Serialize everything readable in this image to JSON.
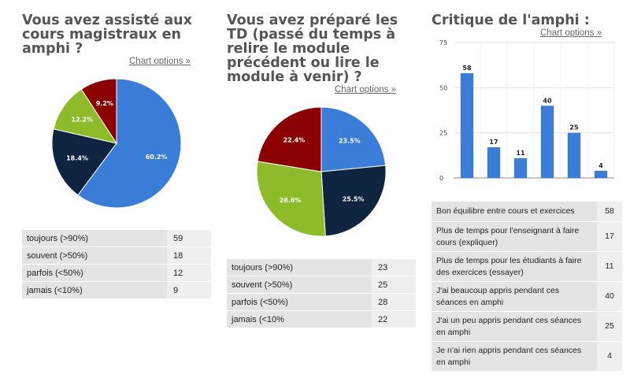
{
  "chart_data": [
    {
      "type": "pie",
      "title": "Vous avez assisté aux cours magistraux en amphi ?",
      "chart_options_label": "Chart options »",
      "categories": [
        "toujours (>90%)",
        "souvent (>50%)",
        "parfois (<50%)",
        "jamais (<10%)"
      ],
      "values": [
        59,
        18,
        12,
        9
      ],
      "percent_labels": [
        "60.2%",
        "18.4%",
        "12.2%",
        "9.2%"
      ],
      "colors": [
        "#3a7dd8",
        "#0f2440",
        "#8dbb2a",
        "#8b0000"
      ]
    },
    {
      "type": "pie",
      "title": "Vous avez préparé les TD (passé du temps à relire le module précédent ou lire le module à venir) ?",
      "chart_options_label": "Chart options »",
      "categories": [
        "toujours (>90%)",
        "souvent (>50%)",
        "parfois (<50%)",
        "jamais (<10%"
      ],
      "values": [
        23,
        25,
        28,
        22
      ],
      "percent_labels": [
        "23.5%",
        "25.5%",
        "28.6%",
        "22.4%"
      ],
      "colors": [
        "#3a7dd8",
        "#0f2440",
        "#8dbb2a",
        "#8b0000"
      ]
    },
    {
      "type": "bar",
      "title": "Critique de l'amphi :",
      "chart_options_label": "Chart options »",
      "categories": [
        "Bon équilibre entre cours et exercices",
        "Plus de temps pour l'enseignant à faire cours (expliquer)",
        "Plus de temps pour les étudiants à faire des exercices (essayer)",
        "J'ai beaucoup appris pendant ces séances en amphi",
        "J'ai un peu appris pendant ces séances en amphi",
        "Je n'ai rien appris pendant ces séances en amphi"
      ],
      "values": [
        58,
        17,
        11,
        40,
        25,
        4
      ],
      "ylim": [
        0,
        75
      ],
      "yticks": [
        0,
        25,
        50,
        75
      ],
      "bar_color": "#3a7dd8"
    }
  ]
}
